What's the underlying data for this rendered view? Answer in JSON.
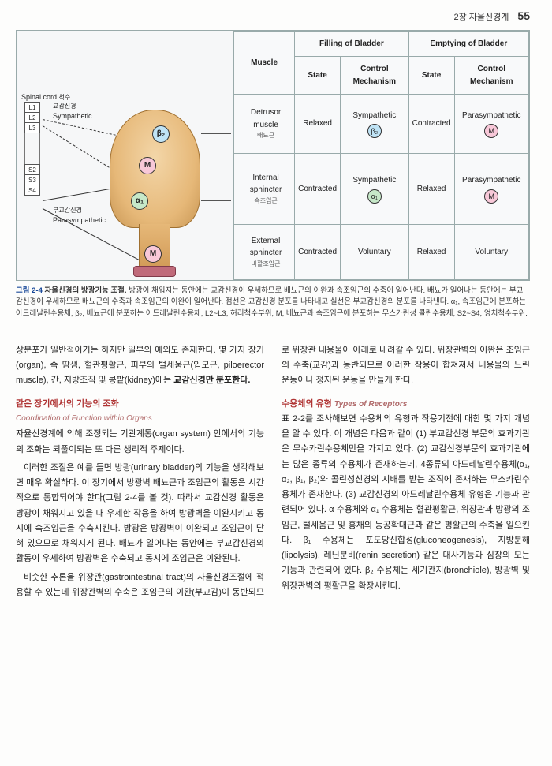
{
  "header": {
    "chapter": "2장 자율신경계",
    "page": "55"
  },
  "spinal": {
    "title": "Spinal cord",
    "title_ko": "척수",
    "upper_segments": [
      "L1",
      "L2",
      "L3"
    ],
    "lower_segments": [
      "S2",
      "S3",
      "S4"
    ],
    "sympathetic_ko": "교감신경",
    "sympathetic_en": "Sympathetic",
    "parasympathetic_ko": "부교감신경",
    "parasympathetic_en": "Parasympathetic"
  },
  "receptors": {
    "b2": "β₂",
    "m": "M",
    "a1": "α₁"
  },
  "table": {
    "col_fill": "Filling of Bladder",
    "col_empty": "Emptying of Bladder",
    "muscle_hdr": "Muscle",
    "state_hdr": "State",
    "ctrl_hdr": "Control Mechanism",
    "rows": [
      {
        "name": "Detrusor muscle",
        "name_ko": "배뇨근",
        "fill_state": "Relaxed",
        "fill_ctrl": "Sympathetic",
        "fill_r": "β₂",
        "fill_cls": "r-b2",
        "empty_state": "Contracted",
        "empty_ctrl": "Parasympathetic",
        "empty_r": "M",
        "empty_cls": "r-m"
      },
      {
        "name": "Internal sphincter",
        "name_ko": "속조임근",
        "fill_state": "Contracted",
        "fill_ctrl": "Sympathetic",
        "fill_r": "α₁",
        "fill_cls": "r-a1",
        "empty_state": "Relaxed",
        "empty_ctrl": "Parasympathetic",
        "empty_r": "M",
        "empty_cls": "r-m"
      },
      {
        "name": "External sphincter",
        "name_ko": "바깥조임근",
        "fill_state": "Contracted",
        "fill_ctrl": "Voluntary",
        "fill_r": "",
        "fill_cls": "",
        "empty_state": "Relaxed",
        "empty_ctrl": "Voluntary",
        "empty_r": "",
        "empty_cls": ""
      }
    ]
  },
  "caption": {
    "label": "그림 2-4",
    "title": "자율신경의 방광기능 조절.",
    "text": "방광이 채워지는 동안에는 교감신경이 우세하므로 배뇨근의 이완과 속조임근의 수축이 일어난다. 배뇨가 일어나는 동안에는 부교감신경이 우세하므로 배뇨근의 수축과 속조임근의 이완이 일어난다. 점선은 교감신경 분포를 나타내고 실선은 부교감신경의 분포를 나타낸다. α₁, 속조임근에 분포하는 아드레날린수용체; β₂, 배뇨근에 분포하는 아드레날린수용체; L2~L3, 허리척수부위; M, 배뇨근과 속조임근에 분포하는 무스카린성 콜린수용체; S2~S4, 엉치척수부위."
  },
  "body": {
    "p1": "상분포가 일반적이기는 하지만 일부의 예외도 존재한다. 몇 가지 장기(organ), 즉 땀샘, 혈관평활근, 피부의 털세움근(입모근, piloerector muscle), 간, 지방조직 및 콩팥(kidney)에는",
    "p1b": "교감신경만 분포한다.",
    "h1_ko": "같은 장기에서의 기능의 조화",
    "h1_en": "Coordination of Function within Organs",
    "p2": "자율신경계에 의해 조정되는 기관계통(organ system) 안에서의 기능의 조화는 되풀이되는 또 다른 생리적 주제이다.",
    "p3": "이러한 조절은 예를 들면 방광(urinary bladder)의 기능을 생각해보면 매우 확실하다. 이 장기에서 방광벽 배뇨근과 조임근의 활동은 시간적으로 통합되어야 한다(그림 2-4를 볼 것). 따라서 교감신경 활동은 방광이 채워지고 있을 때 우세한 작용을 하여 방광벽을 이완시키고 동시에 속조임근을 수축시킨다. 방광은 방광벽이 이완되고 조임근이 닫혀 있으므로 채워지게 된다. 배뇨가 일어나는 동안에는 부교감신경의 활동이 우세하여 방광벽은 수축되고 동시에 조임근은 이완된다.",
    "p4": "비슷한 추론을 위장관(gastrointestinal tract)의 자율신경조절에 적용할 수 있는데 위장관벽의 수축은 조임근의 이완(부교감)이 동반되므로 위장관 내용물이 아래로 내려갈 수 있다. 위장관벽의 이완은 조임근의 수축(교감)과 동반되므로 이러한 작용이 합쳐져서 내용물의 느린 운동이나 정지된 운동을 만들게 한다.",
    "h2_ko": "수용체의 유형",
    "h2_en": "Types of Receptors",
    "p5": "표 2-2를 조사해보면 수용체의 유형과 작용기전에 대한 몇 가지 개념을 알 수 있다. 이 개념은 다음과 같이 (1) 부교감신경 부문의 효과기관은 무수카린수용체만을 가지고 있다. (2) 교감신경부문의 효과기관에는 많은 종류의 수용체가 존재하는데, 4종류의 아드레날린수용체(α₁, α₂, β₁, β₂)와 콜린성신경의 지배를 받는 조직에 존재하는 무스카린수용체가 존재한다. (3) 교감신경의 아드레날린수용체 유형은 기능과 관련되어 있다. α 수용체와 α₁ 수용체는 혈관평활근, 위장관과 방광의 조임근, 털세움근 및 홍채의 동공확대근과 같은 평활근의 수축을 일으킨다. β₁ 수용체는 포도당신합성(gluconeogenesis), 지방분해(lipolysis), 레닌분비(renin secretion) 같은 대사기능과 심장의 모든 기능과 관련되어 있다. β₂ 수용체는 세기관지(bronchiole), 방광벽 및 위장관벽의 평활근을 확장시킨다."
  }
}
